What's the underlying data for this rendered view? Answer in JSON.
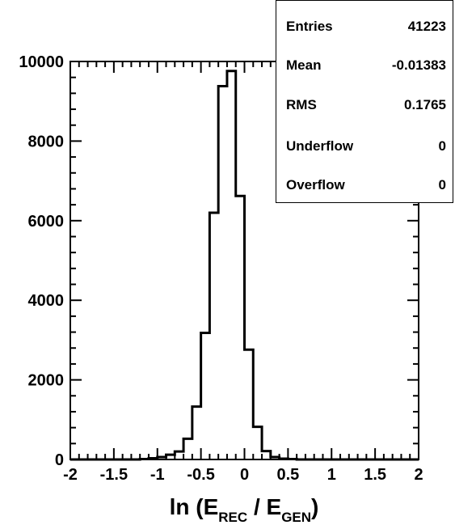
{
  "chart_data": {
    "type": "bar",
    "style": "step-histogram",
    "xlabel": "ln (E_REC / E_GEN)",
    "xlabel_parts": {
      "prefix": "ln (E",
      "sub1": "REC",
      "mid": " / E",
      "sub2": "GEN",
      "suffix": ")"
    },
    "xlim": [
      -2,
      2
    ],
    "ylim": [
      0,
      10000
    ],
    "x_ticks": [
      "-2",
      "-1.5",
      "-1",
      "-0.5",
      "0",
      "0.5",
      "1",
      "1.5",
      "2"
    ],
    "y_ticks": [
      "0",
      "2000",
      "4000",
      "6000",
      "8000",
      "10000"
    ],
    "bin_width": 0.1,
    "bin_edges_start": -2,
    "values": [
      0,
      0,
      0,
      0,
      0,
      0,
      0,
      0,
      10,
      30,
      60,
      120,
      200,
      520,
      1330,
      3180,
      6200,
      9380,
      9760,
      6620,
      2760,
      820,
      210,
      60,
      20,
      10,
      0,
      0,
      0,
      0,
      0,
      0,
      0,
      0,
      0,
      0,
      0,
      0,
      0,
      0
    ],
    "stats": [
      {
        "name": "Entries",
        "value": "41223"
      },
      {
        "name": "Mean",
        "value": "-0.01383"
      },
      {
        "name": "RMS",
        "value": "0.1765"
      },
      {
        "name": "Underflow",
        "value": "0"
      },
      {
        "name": "Overflow",
        "value": "0"
      }
    ]
  }
}
